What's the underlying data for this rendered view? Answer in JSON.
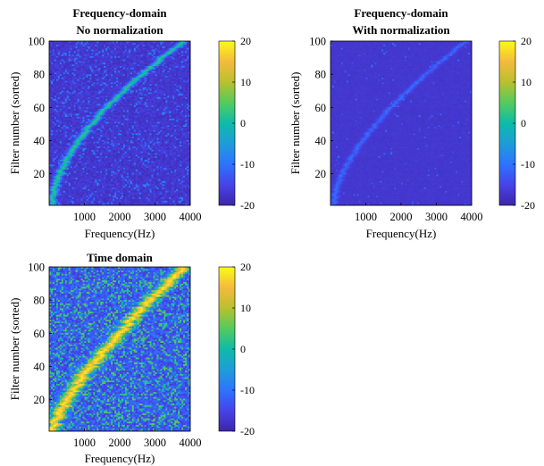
{
  "colormap": [
    "#3e26a8",
    "#4743e8",
    "#2d73ff",
    "#1e9dd9",
    "#0dbba9",
    "#54cb5d",
    "#b9c02e",
    "#f5ba3d",
    "#f9fb15"
  ],
  "chart_data": [
    {
      "type": "heatmap",
      "title_lines": [
        "Frequency-domain",
        "No normalization"
      ],
      "xlabel": "Frequency(Hz)",
      "ylabel": "Filter number (sorted)",
      "xlim": [
        0,
        4000
      ],
      "ylim": [
        1,
        100
      ],
      "xticks": [
        "1000",
        "2000",
        "3000",
        "4000"
      ],
      "yticks": [
        "20",
        "40",
        "60",
        "80",
        "100"
      ],
      "colorbar": {
        "range": [
          -20,
          20
        ],
        "ticks": [
          "20",
          "10",
          "0",
          "-10",
          "-20"
        ]
      },
      "background_level": -17,
      "noise": 1.6,
      "ridge": {
        "freq_low_hz": 80,
        "freq_high_hz": 3800,
        "shape": 1.7,
        "width_hz": 70,
        "peak_level": 2
      },
      "speckle": {
        "density": 0.1,
        "level": -10
      }
    },
    {
      "type": "heatmap",
      "title_lines": [
        "Frequency-domain",
        "With normalization"
      ],
      "xlabel": "Frequency(Hz)",
      "ylabel": "Filter number (sorted)",
      "xlim": [
        0,
        4000
      ],
      "ylim": [
        1,
        100
      ],
      "xticks": [
        "1000",
        "2000",
        "3000",
        "4000"
      ],
      "yticks": [
        "20",
        "40",
        "60",
        "80",
        "100"
      ],
      "colorbar": {
        "range": [
          -20,
          20
        ],
        "ticks": [
          "20",
          "10",
          "0",
          "-10",
          "-20"
        ]
      },
      "background_level": -17,
      "noise": 0.4,
      "ridge": {
        "freq_low_hz": 80,
        "freq_high_hz": 3800,
        "shape": 1.6,
        "width_hz": 60,
        "peak_level": -11
      },
      "speckle": {
        "density": 0.02,
        "level": -13
      }
    },
    {
      "type": "heatmap",
      "title_lines": [
        "Time domain"
      ],
      "xlabel": "Frequency(Hz)",
      "ylabel": "Filter number (sorted)",
      "xlim": [
        0,
        4000
      ],
      "ylim": [
        1,
        100
      ],
      "xticks": [
        "1000",
        "2000",
        "3000",
        "4000"
      ],
      "yticks": [
        "20",
        "40",
        "60",
        "80",
        "100"
      ],
      "colorbar": {
        "range": [
          -20,
          20
        ],
        "ticks": [
          "20",
          "10",
          "0",
          "-10",
          "-20"
        ]
      },
      "background_level": -13,
      "noise": 4,
      "ridge": {
        "freq_low_hz": 80,
        "freq_high_hz": 3800,
        "shape": 1.3,
        "width_hz": 140,
        "peak_level": 18
      },
      "speckle": {
        "density": 0.22,
        "level": 3
      }
    }
  ]
}
